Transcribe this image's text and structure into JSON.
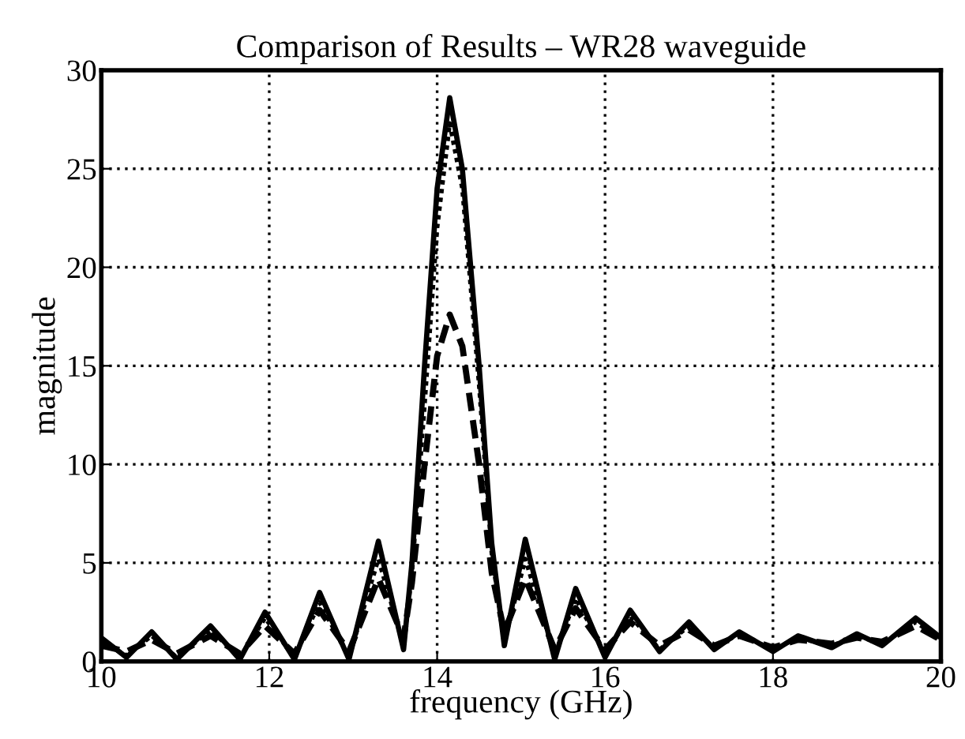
{
  "chart_data": {
    "type": "line",
    "title": "Comparison of Results – WR28 waveguide",
    "xlabel": "frequency (GHz)",
    "ylabel": "magnitude",
    "xlim": [
      10,
      20
    ],
    "ylim": [
      0,
      30
    ],
    "xticks": [
      10,
      12,
      14,
      16,
      18,
      20
    ],
    "yticks": [
      0,
      5,
      10,
      15,
      20,
      25,
      30
    ],
    "grid": true,
    "marker": "none",
    "series": [
      {
        "color": "#000000",
        "line_style": "solid",
        "x": [
          10.0,
          10.3,
          10.6,
          10.9,
          11.3,
          11.65,
          11.95,
          12.3,
          12.6,
          12.95,
          13.3,
          13.6,
          13.7,
          13.85,
          14.0,
          14.15,
          14.3,
          14.5,
          14.65,
          14.8,
          15.05,
          15.4,
          15.65,
          16.0,
          16.3,
          16.65,
          17.0,
          17.3,
          17.6,
          18.0,
          18.3,
          18.7,
          19.0,
          19.3,
          19.7,
          20.0
        ],
        "values": [
          1.2,
          0.2,
          1.5,
          0.1,
          1.8,
          0.1,
          2.5,
          0.1,
          3.5,
          0.1,
          6.1,
          0.6,
          5,
          15,
          24,
          28.6,
          25,
          15,
          6,
          0.8,
          6.2,
          0.1,
          3.7,
          0.2,
          2.6,
          0.5,
          2.0,
          0.6,
          1.5,
          0.5,
          1.3,
          0.7,
          1.4,
          0.8,
          2.2,
          1.2
        ]
      },
      {
        "color": "#000000",
        "line_style": "dotted",
        "x": [
          10.0,
          10.3,
          10.6,
          10.9,
          11.3,
          11.65,
          11.95,
          12.3,
          12.6,
          12.95,
          13.3,
          13.6,
          13.7,
          13.85,
          14.0,
          14.15,
          14.3,
          14.5,
          14.65,
          14.8,
          15.05,
          15.4,
          15.65,
          16.0,
          16.3,
          16.65,
          17.0,
          17.3,
          17.6,
          18.0,
          18.3,
          18.7,
          19.0,
          19.3,
          19.7,
          20.0
        ],
        "values": [
          1.0,
          0.3,
          1.3,
          0.2,
          1.6,
          0.2,
          2.2,
          0.2,
          3.0,
          0.2,
          5.2,
          0.8,
          4.5,
          13,
          22,
          27.3,
          24,
          14,
          5.5,
          1.0,
          5.2,
          0.3,
          3.2,
          0.4,
          2.3,
          0.6,
          1.8,
          0.7,
          1.4,
          0.6,
          1.2,
          0.8,
          1.3,
          0.9,
          2.0,
          1.1
        ]
      },
      {
        "color": "#000000",
        "line_style": "dashed",
        "x": [
          10.0,
          10.3,
          10.6,
          10.9,
          11.3,
          11.65,
          11.95,
          12.3,
          12.6,
          12.95,
          13.3,
          13.6,
          13.7,
          13.85,
          14.0,
          14.15,
          14.3,
          14.5,
          14.65,
          14.8,
          15.05,
          15.4,
          15.65,
          16.0,
          16.3,
          16.65,
          17.0,
          17.3,
          17.6,
          18.0,
          18.3,
          18.7,
          19.0,
          19.3,
          19.7,
          20.0
        ],
        "values": [
          0.8,
          0.5,
          1.1,
          0.4,
          1.3,
          0.4,
          1.8,
          0.4,
          2.6,
          0.5,
          4.2,
          1.2,
          4,
          10,
          15.5,
          17.6,
          16,
          10,
          4.5,
          1.5,
          4.2,
          0.6,
          2.7,
          0.6,
          2.0,
          0.8,
          1.6,
          0.8,
          1.3,
          0.7,
          1.1,
          0.9,
          1.2,
          1.0,
          1.8,
          1.1
        ]
      }
    ]
  }
}
